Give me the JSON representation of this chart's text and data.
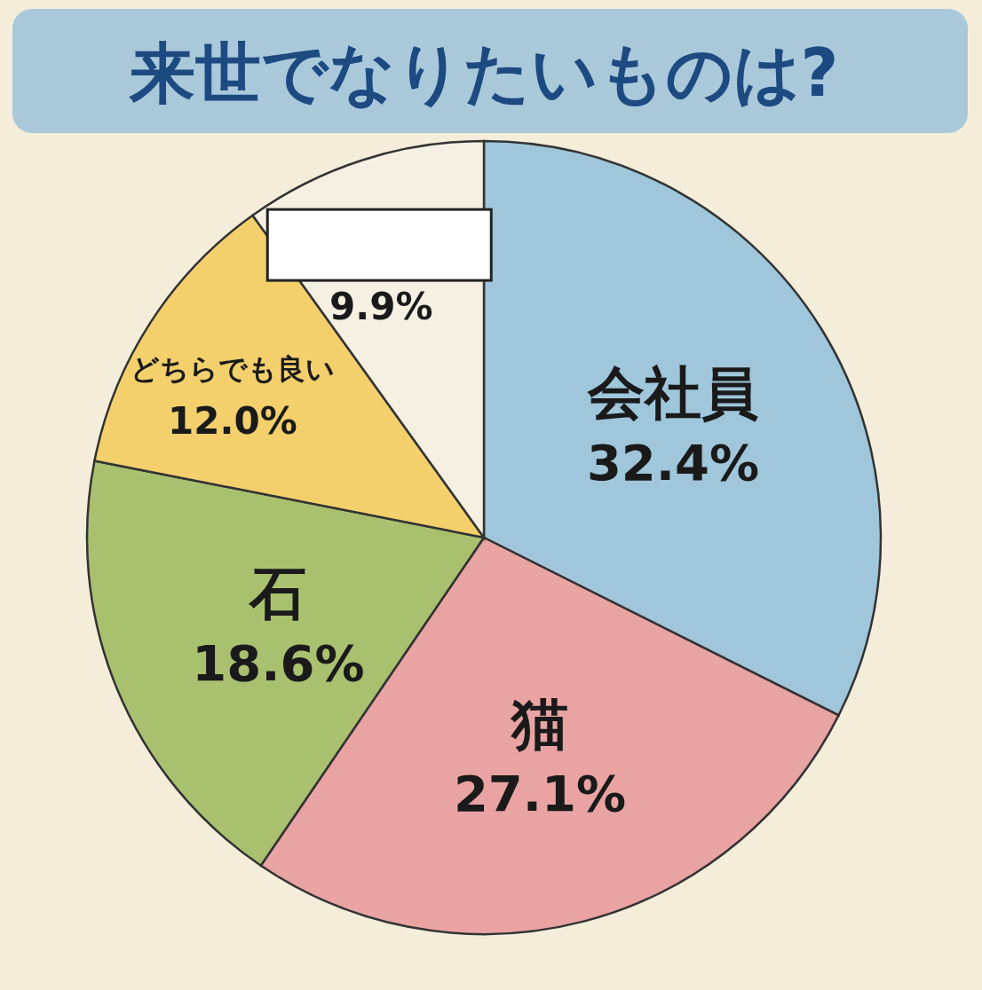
{
  "chart_data": {
    "type": "pie",
    "title": "来世でなりたいものは?",
    "categories": [
      "会社員",
      "猫",
      "石",
      "どちらでも良い",
      null
    ],
    "values": [
      32.4,
      27.1,
      18.6,
      12.0,
      9.9
    ],
    "value_labels": [
      "32.4%",
      "27.1%",
      "18.6%",
      "12.0%",
      "9.9%"
    ],
    "colors": [
      "#9fc6da",
      "#e8a3a2",
      "#a9c16f",
      "#f3d06c",
      "#f6f0e3"
    ]
  }
}
